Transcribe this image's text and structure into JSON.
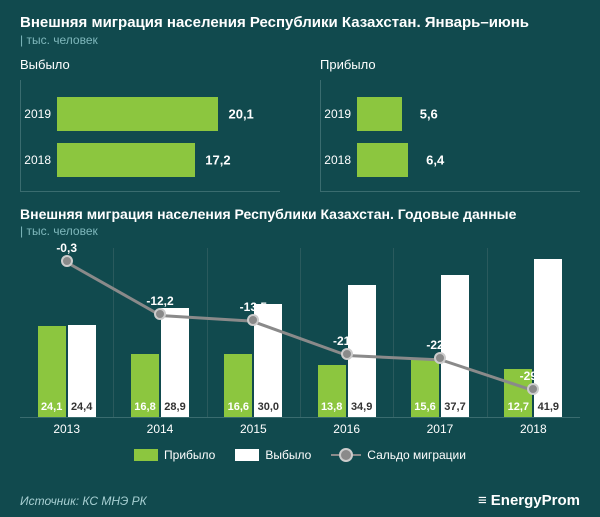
{
  "title": "Внешняя миграция населения Республики Казахстан. Январь–июнь",
  "unit": "| тыс. человек",
  "colors": {
    "background": "#114a4e",
    "accent_green": "#8cc63f",
    "white": "#ffffff",
    "saldo_gray": "#8a8a8a",
    "grid": "#2a5a5d",
    "subtitle": "#7fb8bc"
  },
  "left_chart": {
    "title": "Выбыло",
    "type": "bar_horizontal",
    "bar_color": "#8cc63f",
    "max": 25,
    "bars": [
      {
        "year": "2019",
        "value": 20.1,
        "label": "20,1"
      },
      {
        "year": "2018",
        "value": 17.2,
        "label": "17,2"
      }
    ]
  },
  "right_chart": {
    "title": "Прибыло",
    "type": "bar_horizontal",
    "bar_color": "#8cc63f",
    "max": 25,
    "bars": [
      {
        "year": "2019",
        "value": 5.6,
        "label": "5,6"
      },
      {
        "year": "2018",
        "value": 6.4,
        "label": "6,4"
      }
    ]
  },
  "section2": {
    "title": "Внешняя миграция населения Республики Казахстан. Годовые данные",
    "unit": "| тыс. человек",
    "type": "combo_bar_line",
    "bar_colors": {
      "arrived": "#8cc63f",
      "departed": "#ffffff"
    },
    "line_color": "#8a8a8a",
    "y_bar_max": 45,
    "years": [
      "2013",
      "2014",
      "2015",
      "2016",
      "2017",
      "2018"
    ],
    "arrived": [
      24.1,
      16.8,
      16.6,
      13.8,
      15.6,
      12.7
    ],
    "arrived_labels": [
      "24,1",
      "16,8",
      "16,6",
      "13,8",
      "15,6",
      "12,7"
    ],
    "departed": [
      24.4,
      28.9,
      30.0,
      34.9,
      37.7,
      41.9
    ],
    "departed_labels": [
      "24,4",
      "28,9",
      "30,0",
      "34,9",
      "37,7",
      "41,9"
    ],
    "saldo": [
      -0.3,
      -12.2,
      -13.5,
      -21.1,
      -22.1,
      -29.1
    ],
    "saldo_labels": [
      "-0,3",
      "-12,2",
      "-13,5",
      "-21,1",
      "-22,1",
      "-29,1"
    ]
  },
  "legend": {
    "arrived": "Прибыло",
    "departed": "Выбыло",
    "saldo": "Сальдо миграции"
  },
  "source": "Источник: КС МНЭ РК",
  "brand": {
    "icon": "≡",
    "name": "EnergyProm"
  }
}
